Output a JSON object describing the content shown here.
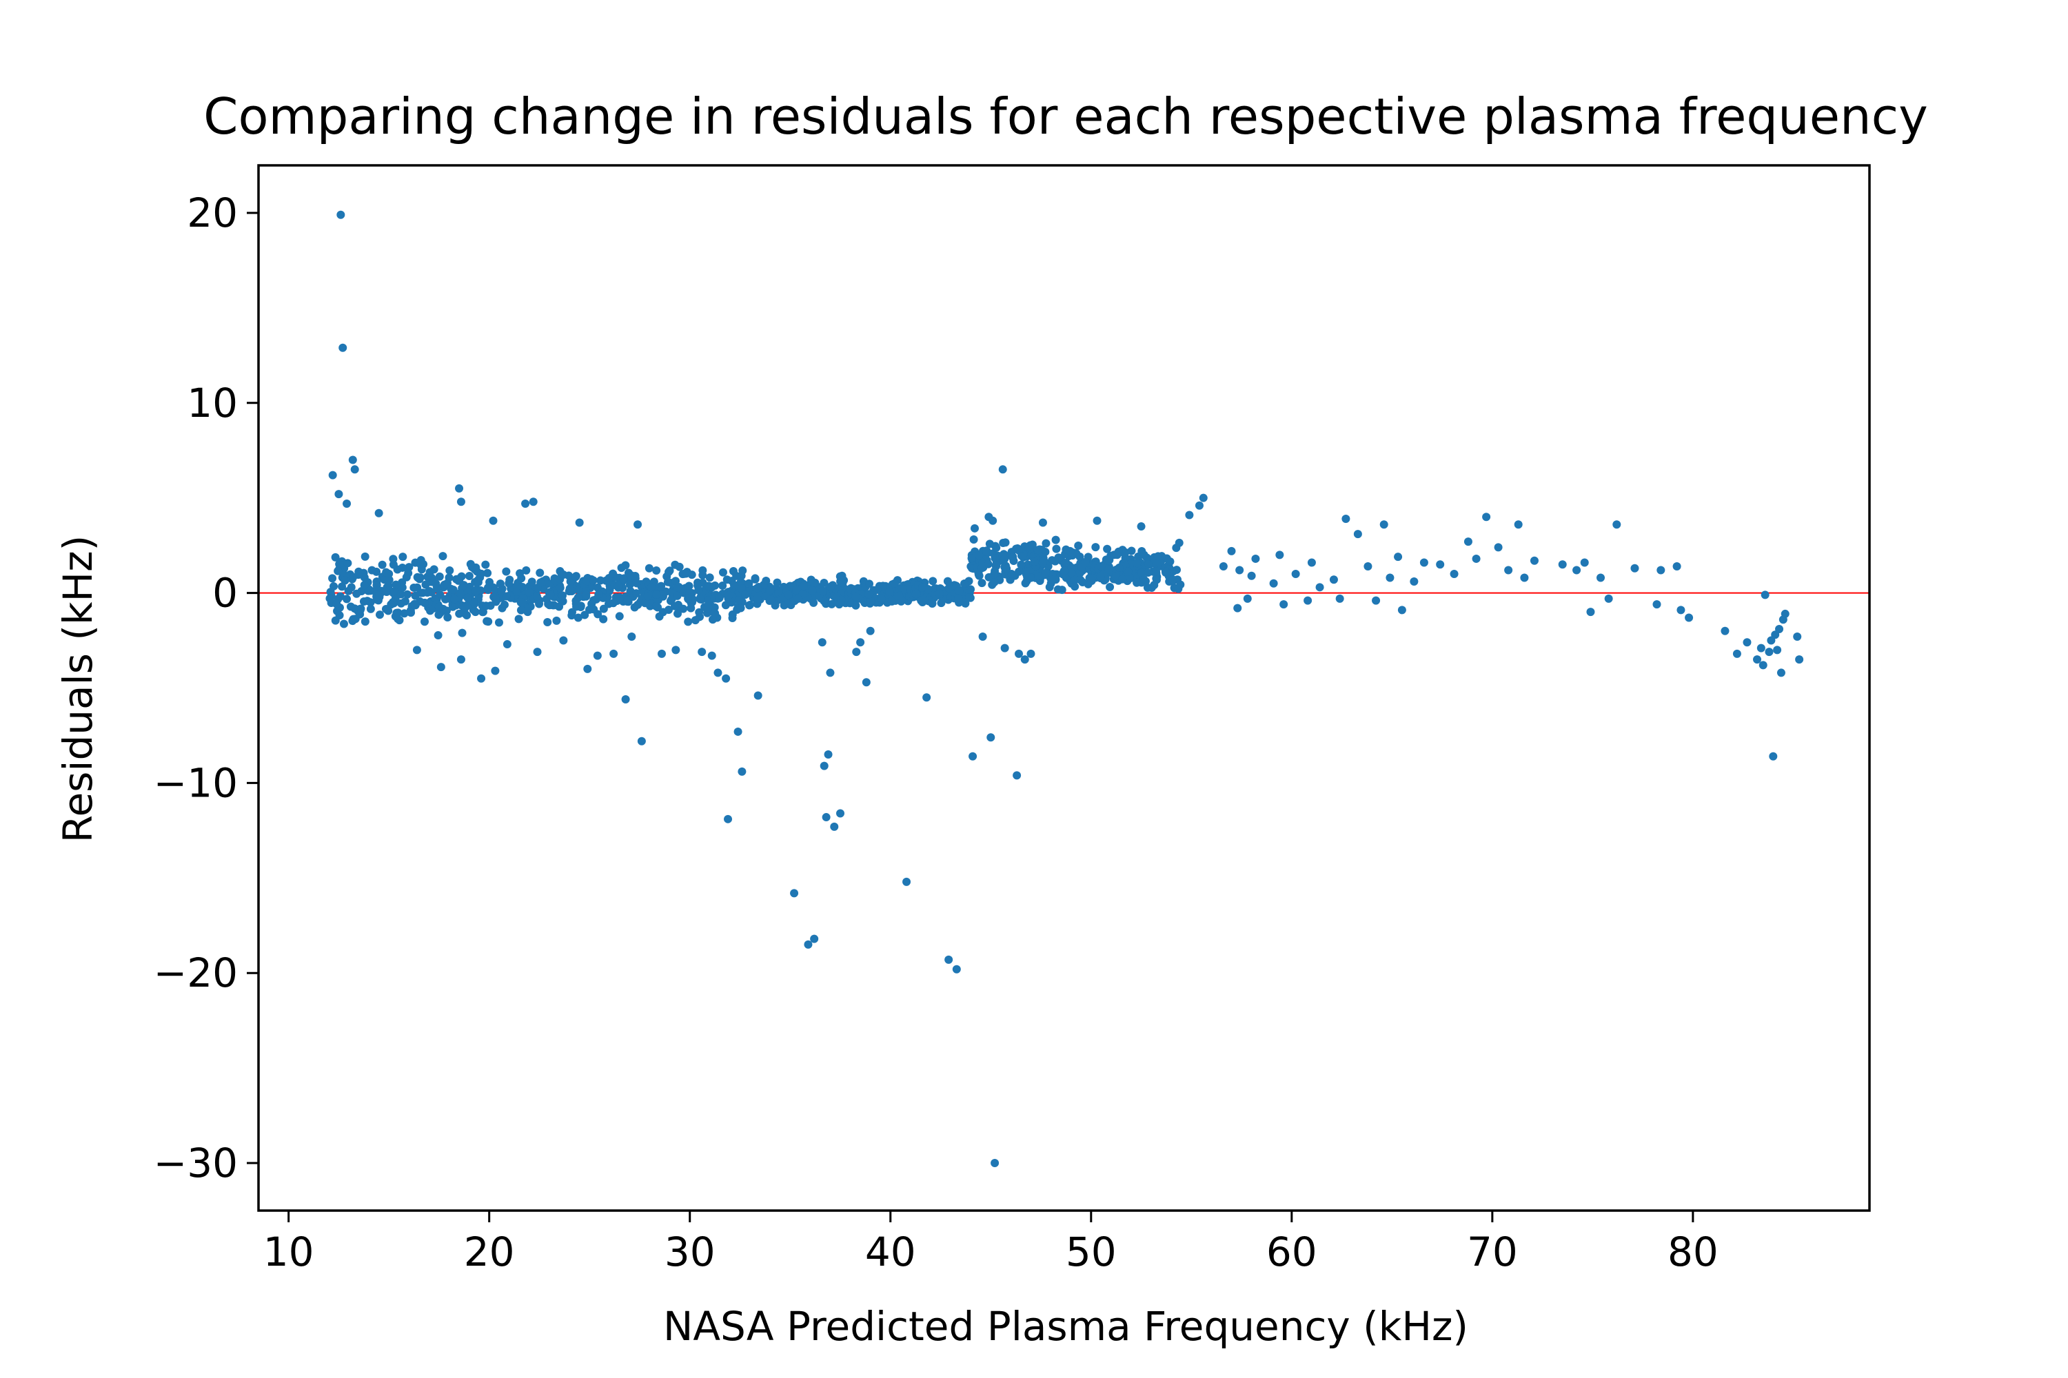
{
  "chart_data": {
    "type": "scatter",
    "title": "Comparing change in residuals for each respective plasma frequency",
    "xlabel": "NASA Predicted Plasma Frequency (kHz)",
    "ylabel": "Residuals (kHz)",
    "xlim": [
      8.5,
      88.8
    ],
    "ylim": [
      -32.5,
      22.5
    ],
    "xticks": [
      10,
      20,
      30,
      40,
      50,
      60,
      70,
      80
    ],
    "yticks": [
      20,
      10,
      0,
      -10,
      -20,
      -30
    ],
    "xtick_labels": [
      "10",
      "20",
      "30",
      "40",
      "50",
      "60",
      "70",
      "80"
    ],
    "ytick_labels": [
      "20",
      "10",
      "0",
      "−10",
      "−20",
      "−30"
    ],
    "grid": false,
    "reference_line": {
      "y": 0,
      "color": "#ff0000"
    },
    "point_color": "#1f77b4",
    "series": [
      {
        "points": [
          [
            12.6,
            19.9
          ],
          [
            12.7,
            12.9
          ],
          [
            12.2,
            6.2
          ],
          [
            13.2,
            7.0
          ],
          [
            13.3,
            6.5
          ],
          [
            12.5,
            5.2
          ],
          [
            12.9,
            4.7
          ],
          [
            18.5,
            5.5
          ],
          [
            18.6,
            4.8
          ],
          [
            21.8,
            4.7
          ],
          [
            22.2,
            4.8
          ],
          [
            14.5,
            4.2
          ],
          [
            20.2,
            3.8
          ],
          [
            24.5,
            3.7
          ],
          [
            27.4,
            3.6
          ],
          [
            45.6,
            6.5
          ],
          [
            55.6,
            5.0
          ],
          [
            55.4,
            4.6
          ],
          [
            69.7,
            4.0
          ],
          [
            71.3,
            3.6
          ],
          [
            76.2,
            3.6
          ],
          [
            62.7,
            3.9
          ],
          [
            64.6,
            3.6
          ],
          [
            47.6,
            3.7
          ],
          [
            50.3,
            3.8
          ],
          [
            44.9,
            4.0
          ],
          [
            45.1,
            3.8
          ],
          [
            44.2,
            3.4
          ],
          [
            54.9,
            4.1
          ],
          [
            52.5,
            3.5
          ],
          [
            57.0,
            2.2
          ],
          [
            58.2,
            1.8
          ],
          [
            59.4,
            2.0
          ],
          [
            61.0,
            1.6
          ],
          [
            63.3,
            3.1
          ],
          [
            65.3,
            1.9
          ],
          [
            66.6,
            1.6
          ],
          [
            68.8,
            2.7
          ],
          [
            70.3,
            2.4
          ],
          [
            72.1,
            1.7
          ],
          [
            73.5,
            1.5
          ],
          [
            74.2,
            1.2
          ],
          [
            74.6,
            1.6
          ],
          [
            75.4,
            0.8
          ],
          [
            77.1,
            1.3
          ],
          [
            78.4,
            1.2
          ],
          [
            79.2,
            1.4
          ],
          [
            57.4,
            1.2
          ],
          [
            58.0,
            0.9
          ],
          [
            59.1,
            0.5
          ],
          [
            60.2,
            1.0
          ],
          [
            61.4,
            0.3
          ],
          [
            62.1,
            0.7
          ],
          [
            63.8,
            1.4
          ],
          [
            64.9,
            0.8
          ],
          [
            67.4,
            1.5
          ],
          [
            68.1,
            1.0
          ],
          [
            69.2,
            1.8
          ],
          [
            70.8,
            1.2
          ],
          [
            71.6,
            0.8
          ],
          [
            56.6,
            1.4
          ],
          [
            57.8,
            -0.3
          ],
          [
            59.6,
            -0.6
          ],
          [
            62.4,
            -0.3
          ],
          [
            64.2,
            -0.4
          ],
          [
            65.5,
            -0.9
          ],
          [
            66.1,
            0.6
          ],
          [
            60.8,
            -0.4
          ],
          [
            57.3,
            -0.8
          ],
          [
            74.9,
            -1.0
          ],
          [
            75.8,
            -0.3
          ],
          [
            78.2,
            -0.6
          ],
          [
            79.4,
            -0.9
          ],
          [
            79.8,
            -1.3
          ],
          [
            83.6,
            -0.1
          ],
          [
            81.6,
            -2.0
          ],
          [
            82.2,
            -3.2
          ],
          [
            82.7,
            -2.6
          ],
          [
            83.2,
            -3.5
          ],
          [
            83.5,
            -3.8
          ],
          [
            83.8,
            -3.1
          ],
          [
            84.1,
            -2.2
          ],
          [
            84.3,
            -1.9
          ],
          [
            84.5,
            -1.4
          ],
          [
            84.6,
            -1.1
          ],
          [
            84.4,
            -4.2
          ],
          [
            85.2,
            -2.3
          ],
          [
            85.3,
            -3.5
          ],
          [
            84.0,
            -8.6
          ],
          [
            83.4,
            -2.9
          ],
          [
            83.9,
            -2.5
          ],
          [
            84.2,
            -3.0
          ],
          [
            27.6,
            -7.8
          ],
          [
            26.8,
            -5.6
          ],
          [
            31.8,
            -4.5
          ],
          [
            31.4,
            -4.2
          ],
          [
            32.4,
            -7.3
          ],
          [
            32.6,
            -9.4
          ],
          [
            31.9,
            -11.9
          ],
          [
            33.4,
            -5.4
          ],
          [
            35.2,
            -15.8
          ],
          [
            35.9,
            -18.5
          ],
          [
            36.2,
            -18.2
          ],
          [
            36.7,
            -9.1
          ],
          [
            36.9,
            -8.5
          ],
          [
            36.8,
            -11.8
          ],
          [
            37.2,
            -12.3
          ],
          [
            37.5,
            -11.6
          ],
          [
            37.0,
            -4.2
          ],
          [
            38.8,
            -4.7
          ],
          [
            40.8,
            -15.2
          ],
          [
            41.8,
            -5.5
          ],
          [
            42.9,
            -19.3
          ],
          [
            43.3,
            -19.8
          ],
          [
            44.1,
            -8.6
          ],
          [
            45.0,
            -7.6
          ],
          [
            46.3,
            -9.6
          ],
          [
            45.2,
            -30.0
          ],
          [
            46.4,
            -3.2
          ],
          [
            47.0,
            -3.2
          ],
          [
            46.7,
            -3.5
          ],
          [
            45.7,
            -2.9
          ],
          [
            44.6,
            -2.3
          ],
          [
            38.5,
            -2.6
          ],
          [
            38.3,
            -3.1
          ],
          [
            39.0,
            -2.0
          ],
          [
            36.6,
            -2.6
          ],
          [
            31.1,
            -3.3
          ],
          [
            30.6,
            -3.1
          ],
          [
            29.3,
            -3.0
          ],
          [
            28.6,
            -3.2
          ],
          [
            26.2,
            -3.2
          ],
          [
            24.9,
            -4.0
          ],
          [
            22.4,
            -3.1
          ],
          [
            20.3,
            -4.1
          ],
          [
            19.6,
            -4.5
          ],
          [
            18.6,
            -3.5
          ],
          [
            17.6,
            -3.9
          ],
          [
            16.4,
            -3.0
          ],
          [
            20.9,
            -2.7
          ],
          [
            23.7,
            -2.5
          ],
          [
            27.1,
            -2.3
          ],
          [
            25.4,
            -3.3
          ]
        ]
      }
    ]
  }
}
